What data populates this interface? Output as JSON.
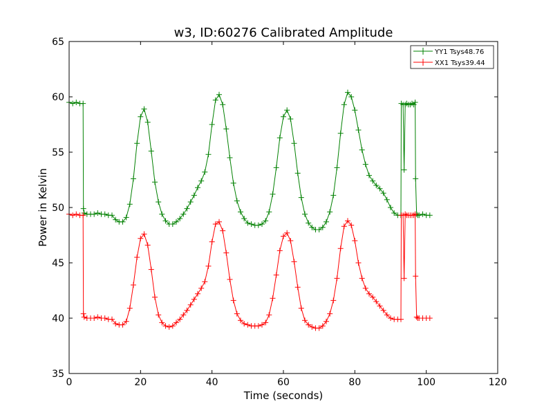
{
  "chart_data": {
    "type": "line",
    "title": "w3, ID:60276 Calibrated Amplitude",
    "xlabel": "Time (seconds)",
    "ylabel": "Power in Kelvin",
    "xlim": [
      0,
      120
    ],
    "ylim": [
      35,
      65
    ],
    "xticks": [
      "0",
      "20",
      "40",
      "60",
      "80",
      "100",
      "120"
    ],
    "yticks": [
      "35",
      "40",
      "45",
      "50",
      "55",
      "60",
      "65"
    ],
    "grid": false,
    "legend_position": "top-right",
    "marker": "plus",
    "series": [
      {
        "name": "YY1 Tsys48.76",
        "color": "#008000",
        "x": [
          0,
          1,
          2,
          3,
          3.9,
          4,
          4.2,
          5,
          6,
          7,
          8,
          9,
          10,
          11,
          12,
          13,
          14,
          15,
          16,
          17,
          18,
          19,
          20,
          21,
          22,
          23,
          24,
          25,
          26,
          27,
          28,
          29,
          30,
          31,
          32,
          33,
          34,
          35,
          36,
          37,
          38,
          39,
          40,
          41,
          42,
          43,
          44,
          45,
          46,
          47,
          48,
          49,
          50,
          51,
          52,
          53,
          54,
          55,
          56,
          57,
          58,
          59,
          60,
          61,
          62,
          63,
          64,
          65,
          66,
          67,
          68,
          69,
          70,
          71,
          72,
          73,
          74,
          75,
          76,
          77,
          78,
          79,
          80,
          81,
          82,
          83,
          84,
          85,
          86,
          87,
          88,
          89,
          90,
          91,
          92,
          92.9,
          93,
          93.5,
          93.8,
          94.1,
          94.5,
          95,
          95.5,
          96,
          96.5,
          96.9,
          97,
          97.3,
          97.6,
          98,
          99,
          100,
          101
        ],
        "y": [
          59.5,
          59.4,
          59.5,
          59.4,
          59.4,
          49.9,
          49.5,
          49.4,
          49.4,
          49.4,
          49.5,
          49.4,
          49.4,
          49.3,
          49.3,
          48.9,
          48.7,
          48.7,
          49.1,
          50.3,
          52.6,
          55.8,
          58.2,
          58.9,
          57.7,
          55.1,
          52.3,
          50.5,
          49.4,
          48.8,
          48.5,
          48.5,
          48.7,
          49.0,
          49.4,
          49.9,
          50.5,
          51.1,
          51.8,
          52.4,
          53.2,
          54.8,
          57.5,
          59.7,
          60.2,
          59.3,
          57.1,
          54.5,
          52.2,
          50.6,
          49.6,
          49.0,
          48.6,
          48.5,
          48.4,
          48.4,
          48.5,
          48.8,
          49.6,
          51.2,
          53.6,
          56.3,
          58.2,
          58.8,
          58.0,
          55.8,
          53.1,
          50.9,
          49.4,
          48.6,
          48.2,
          48.0,
          48.0,
          48.2,
          48.7,
          49.6,
          51.1,
          53.6,
          56.7,
          59.3,
          60.4,
          60.0,
          58.8,
          57.0,
          55.2,
          53.9,
          52.9,
          52.4,
          52.0,
          51.7,
          51.3,
          50.7,
          50.0,
          49.5,
          49.3,
          49.3,
          59.4,
          59.3,
          53.4,
          59.3,
          59.4,
          59.3,
          59.3,
          59.4,
          59.3,
          59.5,
          52.6,
          49.4,
          49.3,
          49.3,
          49.4,
          49.3,
          49.3
        ]
      },
      {
        "name": "XX1 Tsys39.44",
        "color": "#ff0000",
        "x": [
          0,
          1,
          2,
          3,
          3.9,
          4,
          4.2,
          5,
          6,
          7,
          8,
          9,
          10,
          11,
          12,
          13,
          14,
          15,
          16,
          17,
          18,
          19,
          20,
          21,
          22,
          23,
          24,
          25,
          26,
          27,
          28,
          29,
          30,
          31,
          32,
          33,
          34,
          35,
          36,
          37,
          38,
          39,
          40,
          41,
          42,
          43,
          44,
          45,
          46,
          47,
          48,
          49,
          50,
          51,
          52,
          53,
          54,
          55,
          56,
          57,
          58,
          59,
          60,
          61,
          62,
          63,
          64,
          65,
          66,
          67,
          68,
          69,
          70,
          71,
          72,
          73,
          74,
          75,
          76,
          77,
          78,
          79,
          80,
          81,
          82,
          83,
          84,
          85,
          86,
          87,
          88,
          89,
          90,
          91,
          92,
          92.9,
          93,
          93.5,
          93.8,
          94.1,
          94.5,
          95,
          95.5,
          96,
          96.5,
          96.9,
          97,
          97.3,
          97.6,
          98,
          99,
          100,
          101
        ],
        "y": [
          49.4,
          49.3,
          49.4,
          49.3,
          49.3,
          40.4,
          40.1,
          40.0,
          40.0,
          40.0,
          40.1,
          40.0,
          40.0,
          39.9,
          39.9,
          39.5,
          39.4,
          39.4,
          39.7,
          40.9,
          43.0,
          45.5,
          47.2,
          47.6,
          46.6,
          44.4,
          41.9,
          40.3,
          39.6,
          39.3,
          39.2,
          39.3,
          39.6,
          39.9,
          40.3,
          40.7,
          41.2,
          41.7,
          42.2,
          42.7,
          43.3,
          44.7,
          46.9,
          48.5,
          48.7,
          47.9,
          45.9,
          43.5,
          41.6,
          40.4,
          39.8,
          39.5,
          39.4,
          39.3,
          39.3,
          39.3,
          39.4,
          39.6,
          40.3,
          41.8,
          43.9,
          46.1,
          47.4,
          47.7,
          47.0,
          45.1,
          42.8,
          40.9,
          39.8,
          39.4,
          39.2,
          39.1,
          39.1,
          39.3,
          39.7,
          40.4,
          41.6,
          43.6,
          46.3,
          48.3,
          48.8,
          48.4,
          47.0,
          45.0,
          43.6,
          42.7,
          42.2,
          41.9,
          41.5,
          41.1,
          40.7,
          40.3,
          40.0,
          39.9,
          39.9,
          39.9,
          49.3,
          49.3,
          43.6,
          49.4,
          49.3,
          49.3,
          49.3,
          49.3,
          49.3,
          49.4,
          43.8,
          40.1,
          40.0,
          40.0,
          40.0,
          40.0,
          40.0
        ]
      }
    ]
  }
}
